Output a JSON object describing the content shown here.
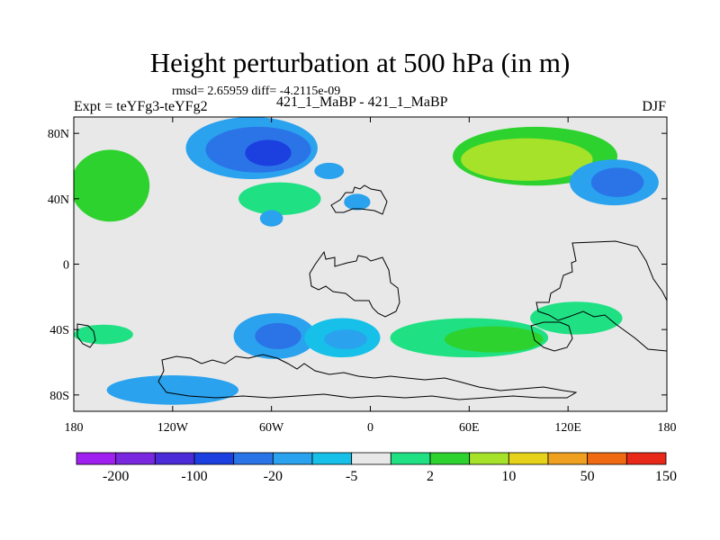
{
  "chart_data": {
    "type": "heatmap",
    "title": "Height perturbation at 500 hPa (in m)",
    "subtitle": "rmsd= 2.65959 diff= -4.2115e-09",
    "left_label": "Expt = teYFg3-teYFg2",
    "center_label": "421_1_MaBP - 421_1_MaBP",
    "right_label": "DJF",
    "x_axis": {
      "range": [
        -180,
        180
      ],
      "ticks": [
        -180,
        -120,
        -60,
        0,
        60,
        120,
        180
      ],
      "tick_labels": [
        "180",
        "120W",
        "60W",
        "0",
        "60E",
        "120E",
        "180"
      ]
    },
    "y_axis": {
      "range": [
        -90,
        90
      ],
      "ticks": [
        80,
        40,
        0,
        -40,
        -80
      ],
      "tick_labels": [
        "80N",
        "40N",
        "0",
        "40S",
        "80S"
      ]
    },
    "colorbar": {
      "colors": [
        "#a020f0",
        "#7a28e0",
        "#4b2ad8",
        "#1c40e0",
        "#2a74e8",
        "#2aa2ee",
        "#16c0e8",
        "#e8e8e8",
        "#20e084",
        "#2ed22e",
        "#a6e22a",
        "#e6d21a",
        "#f0a020",
        "#f06a14",
        "#e82818"
      ],
      "labels": [
        "-200",
        "-100",
        "-20",
        "-5",
        "2",
        "10",
        "50",
        "150"
      ],
      "label_positions": [
        1,
        3,
        5,
        7,
        9,
        11,
        13,
        15
      ]
    },
    "features": [
      {
        "name": "north-pacific-positive",
        "lon": -158,
        "lat": 48,
        "rx": 24,
        "ry": 22,
        "level": 9
      },
      {
        "name": "north-america-low-outer",
        "lon": -72,
        "lat": 71,
        "rx": 40,
        "ry": 19,
        "level": 5
      },
      {
        "name": "north-america-low-mid",
        "lon": -68,
        "lat": 70,
        "rx": 32,
        "ry": 14,
        "level": 4
      },
      {
        "name": "north-america-low-core",
        "lon": -62,
        "lat": 68,
        "rx": 14,
        "ry": 8,
        "level": 3
      },
      {
        "name": "north-atlantic-positive",
        "lon": -55,
        "lat": 40,
        "rx": 25,
        "ry": 10,
        "level": 8
      },
      {
        "name": "atlantic-low",
        "lon": -25,
        "lat": 57,
        "rx": 9,
        "ry": 5,
        "level": 5
      },
      {
        "name": "central-atlantic-low",
        "lon": -60,
        "lat": 28,
        "rx": 7,
        "ry": 5,
        "level": 5
      },
      {
        "name": "europe-low",
        "lon": -8,
        "lat": 38,
        "rx": 8,
        "ry": 5,
        "level": 5
      },
      {
        "name": "siberia-positive",
        "lon": 100,
        "lat": 66,
        "rx": 50,
        "ry": 18,
        "level": 9
      },
      {
        "name": "siberia-positive-inner",
        "lon": 95,
        "lat": 64,
        "rx": 40,
        "ry": 13,
        "level": 10
      },
      {
        "name": "north-pacific-low",
        "lon": 148,
        "lat": 50,
        "rx": 27,
        "ry": 14,
        "level": 5
      },
      {
        "name": "north-pacific-low-core",
        "lon": 150,
        "lat": 50,
        "rx": 16,
        "ry": 9,
        "level": 4
      },
      {
        "name": "south-pacific-low",
        "lon": -58,
        "lat": -44,
        "rx": 25,
        "ry": 14,
        "level": 5
      },
      {
        "name": "south-pacific-low-core",
        "lon": -56,
        "lat": -44,
        "rx": 14,
        "ry": 8,
        "level": 4
      },
      {
        "name": "south-atlantic-low",
        "lon": -17,
        "lat": -45,
        "rx": 23,
        "ry": 12,
        "level": 6
      },
      {
        "name": "south-atlantic-low-core",
        "lon": -15,
        "lat": -46,
        "rx": 13,
        "ry": 6,
        "level": 5
      },
      {
        "name": "southern-ocean-positive",
        "lon": 60,
        "lat": -45,
        "rx": 48,
        "ry": 12,
        "level": 8
      },
      {
        "name": "southern-ocean-positive-core",
        "lon": 75,
        "lat": -46,
        "rx": 30,
        "ry": 8,
        "level": 9
      },
      {
        "name": "indian-ocean-positive",
        "lon": 125,
        "lat": -33,
        "rx": 28,
        "ry": 10,
        "level": 8
      },
      {
        "name": "antarctic-low",
        "lon": -120,
        "lat": -77,
        "rx": 40,
        "ry": 9,
        "level": 5
      },
      {
        "name": "south-pacific-positive",
        "lon": -162,
        "lat": -43,
        "rx": 18,
        "ry": 6,
        "level": 8
      }
    ]
  }
}
